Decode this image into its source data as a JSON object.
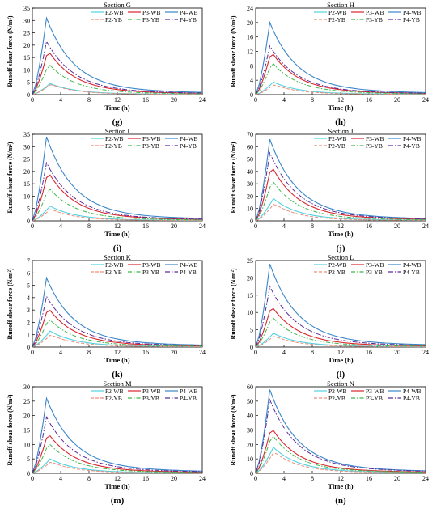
{
  "figure": {
    "ylabel": "Runoff shear force (N/m²)",
    "xlabel": "Time (h)"
  },
  "legend_labels": [
    "P2-WB",
    "P3-WB",
    "P4-WB",
    "P2-YB",
    "P3-YB",
    "P4-YB"
  ],
  "colors": {
    "P2-WB": "#4fd2e0",
    "P3-WB": "#d9262e",
    "P4-WB": "#3a86c8",
    "P2-YB": "#f08c7a",
    "P3-YB": "#3cb84a",
    "P4-YB": "#5a2a9a"
  },
  "chart_data": [
    {
      "id": "G",
      "title": "Section G",
      "caption": "(g)",
      "type": "line",
      "xlim": [
        0,
        24
      ],
      "ylim": [
        0,
        35
      ],
      "xticks": [
        0,
        4,
        8,
        12,
        16,
        20,
        24
      ],
      "yticks": [
        0,
        5,
        10,
        15,
        20,
        25,
        30,
        35
      ],
      "peaks": [
        4.5,
        18,
        31,
        4.2,
        12.5,
        21.5
      ],
      "series": [
        {
          "name": "P2-WB",
          "values": []
        },
        {
          "name": "P3-WB",
          "values": []
        },
        {
          "name": "P4-WB",
          "values": []
        },
        {
          "name": "P2-YB",
          "values": []
        },
        {
          "name": "P3-YB",
          "values": []
        },
        {
          "name": "P4-YB",
          "values": []
        }
      ]
    },
    {
      "id": "H",
      "title": "Section H",
      "caption": "(h)",
      "type": "line",
      "xlim": [
        0,
        24
      ],
      "ylim": [
        0,
        24
      ],
      "xticks": [
        0,
        4,
        8,
        12,
        16,
        20,
        24
      ],
      "yticks": [
        0,
        4,
        8,
        12,
        16,
        20,
        24
      ],
      "peaks": [
        3.5,
        12,
        20,
        2.8,
        9,
        13.5
      ],
      "series": [
        {
          "name": "P2-WB",
          "values": []
        },
        {
          "name": "P3-WB",
          "values": []
        },
        {
          "name": "P4-WB",
          "values": []
        },
        {
          "name": "P2-YB",
          "values": []
        },
        {
          "name": "P3-YB",
          "values": []
        },
        {
          "name": "P4-YB",
          "values": []
        }
      ]
    },
    {
      "id": "I",
      "title": "Section I",
      "caption": "(i)",
      "type": "line",
      "xlim": [
        0,
        24
      ],
      "ylim": [
        0,
        35
      ],
      "xticks": [
        0,
        4,
        8,
        12,
        16,
        20,
        24
      ],
      "yticks": [
        0,
        5,
        10,
        15,
        20,
        25,
        30,
        35
      ],
      "peaks": [
        6,
        20,
        34,
        4.8,
        13.5,
        23.5
      ],
      "series": [
        {
          "name": "P2-WB",
          "values": []
        },
        {
          "name": "P3-WB",
          "values": []
        },
        {
          "name": "P4-WB",
          "values": []
        },
        {
          "name": "P2-YB",
          "values": []
        },
        {
          "name": "P3-YB",
          "values": []
        },
        {
          "name": "P4-YB",
          "values": []
        }
      ]
    },
    {
      "id": "J",
      "title": "Section J",
      "caption": "(j)",
      "type": "line",
      "xlim": [
        0,
        24
      ],
      "ylim": [
        0,
        70
      ],
      "xticks": [
        0,
        4,
        8,
        12,
        16,
        20,
        24
      ],
      "yticks": [
        0,
        10,
        20,
        30,
        40,
        50,
        60,
        70
      ],
      "peaks": [
        18,
        45,
        66,
        14,
        33,
        55
      ],
      "series": [
        {
          "name": "P2-WB",
          "values": []
        },
        {
          "name": "P3-WB",
          "values": []
        },
        {
          "name": "P4-WB",
          "values": []
        },
        {
          "name": "P2-YB",
          "values": []
        },
        {
          "name": "P3-YB",
          "values": []
        },
        {
          "name": "P4-YB",
          "values": []
        }
      ]
    },
    {
      "id": "K",
      "title": "Section K",
      "caption": "(k)",
      "type": "line",
      "xlim": [
        0,
        24
      ],
      "ylim": [
        0,
        7
      ],
      "xticks": [
        0,
        4,
        8,
        12,
        16,
        20,
        24
      ],
      "yticks": [
        0,
        1,
        2,
        3,
        4,
        5,
        6,
        7
      ],
      "peaks": [
        1.3,
        3.2,
        5.6,
        1.0,
        2.3,
        4.1
      ],
      "series": [
        {
          "name": "P2-WB",
          "values": []
        },
        {
          "name": "P3-WB",
          "values": []
        },
        {
          "name": "P4-WB",
          "values": []
        },
        {
          "name": "P2-YB",
          "values": []
        },
        {
          "name": "P3-YB",
          "values": []
        },
        {
          "name": "P4-YB",
          "values": []
        }
      ]
    },
    {
      "id": "L",
      "title": "Section L",
      "caption": "(l)",
      "type": "line",
      "xlim": [
        0,
        24
      ],
      "ylim": [
        0,
        25
      ],
      "xticks": [
        0,
        4,
        8,
        12,
        16,
        20,
        24
      ],
      "yticks": [
        0,
        5,
        10,
        15,
        20,
        25
      ],
      "peaks": [
        4,
        12,
        24,
        3.2,
        8.8,
        17.5
      ],
      "series": [
        {
          "name": "P2-WB",
          "values": []
        },
        {
          "name": "P3-WB",
          "values": []
        },
        {
          "name": "P4-WB",
          "values": []
        },
        {
          "name": "P2-YB",
          "values": []
        },
        {
          "name": "P3-YB",
          "values": []
        },
        {
          "name": "P4-YB",
          "values": []
        }
      ]
    },
    {
      "id": "M",
      "title": "Section M",
      "caption": "(m)",
      "type": "line",
      "xlim": [
        0,
        24
      ],
      "ylim": [
        0,
        30
      ],
      "xticks": [
        0,
        4,
        8,
        12,
        16,
        20,
        24
      ],
      "yticks": [
        0,
        5,
        10,
        15,
        20,
        25,
        30
      ],
      "peaks": [
        5,
        14,
        26,
        4,
        10.5,
        19.5
      ],
      "series": [
        {
          "name": "P2-WB",
          "values": []
        },
        {
          "name": "P3-WB",
          "values": []
        },
        {
          "name": "P4-WB",
          "values": []
        },
        {
          "name": "P2-YB",
          "values": []
        },
        {
          "name": "P3-YB",
          "values": []
        },
        {
          "name": "P4-YB",
          "values": []
        }
      ]
    },
    {
      "id": "N",
      "title": "Section N",
      "caption": "(n)",
      "type": "line",
      "xlim": [
        0,
        24
      ],
      "ylim": [
        0,
        60
      ],
      "xticks": [
        0,
        4,
        8,
        12,
        16,
        20,
        24
      ],
      "yticks": [
        0,
        10,
        20,
        30,
        40,
        50,
        60
      ],
      "peaks": [
        18,
        32,
        58,
        15,
        27,
        51
      ],
      "series": [
        {
          "name": "P2-WB",
          "values": []
        },
        {
          "name": "P3-WB",
          "values": []
        },
        {
          "name": "P4-WB",
          "values": []
        },
        {
          "name": "P2-YB",
          "values": []
        },
        {
          "name": "P3-YB",
          "values": []
        },
        {
          "name": "P4-YB",
          "values": []
        }
      ]
    }
  ]
}
